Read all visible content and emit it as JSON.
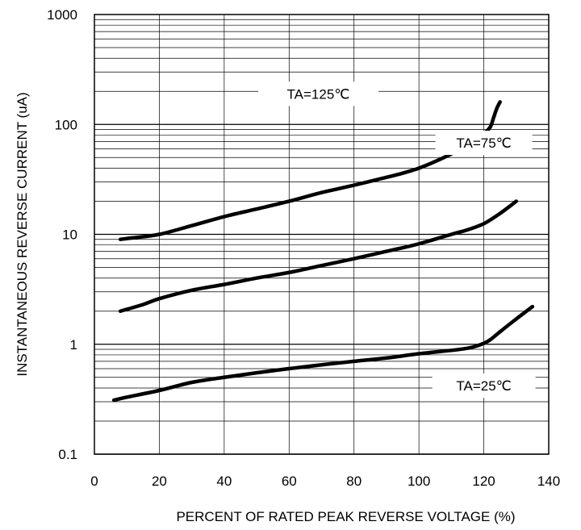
{
  "chart_data": {
    "type": "line",
    "xlabel": "PERCENT OF RATED PEAK REVERSE VOLTAGE (%)",
    "ylabel": "INSTANTANEOUS REVERSE CURRENT (uA)",
    "xlim": [
      0,
      140
    ],
    "ylim": [
      0.1,
      1000
    ],
    "yscale": "log",
    "grid": true,
    "x_ticks": [
      "0",
      "20",
      "40",
      "60",
      "80",
      "100",
      "120",
      "140"
    ],
    "y_ticks": [
      "0.1",
      "1",
      "10",
      "100",
      "1000"
    ],
    "series": [
      {
        "name": "TA=125℃",
        "x": [
          8,
          12,
          20,
          30,
          40,
          50,
          60,
          70,
          80,
          90,
          95,
          100,
          105,
          110,
          115,
          118,
          120,
          122,
          123,
          124,
          125
        ],
        "y": [
          9,
          9.3,
          10,
          12,
          14.5,
          17,
          20,
          24,
          28,
          33,
          36,
          40,
          46,
          54,
          65,
          74,
          82,
          95,
          115,
          140,
          160
        ]
      },
      {
        "name": "TA=75℃",
        "x": [
          8,
          15,
          20,
          30,
          40,
          50,
          60,
          70,
          80,
          90,
          100,
          110,
          115,
          120,
          125,
          130
        ],
        "y": [
          2,
          2.3,
          2.6,
          3.1,
          3.5,
          4,
          4.5,
          5.2,
          6,
          7,
          8.2,
          10,
          11,
          12.5,
          15.5,
          20
        ]
      },
      {
        "name": "TA=25℃",
        "x": [
          6,
          10,
          20,
          30,
          40,
          50,
          60,
          70,
          80,
          90,
          100,
          110,
          115,
          118,
          120,
          122,
          125,
          130,
          135
        ],
        "y": [
          0.31,
          0.33,
          0.38,
          0.45,
          0.5,
          0.55,
          0.6,
          0.65,
          0.7,
          0.75,
          0.82,
          0.88,
          0.92,
          0.97,
          1.02,
          1.1,
          1.3,
          1.7,
          2.2
        ]
      }
    ],
    "labels": [
      {
        "text": "TA=125℃",
        "series": 0
      },
      {
        "text": "TA=75℃",
        "series": 1
      },
      {
        "text": "TA=25℃",
        "series": 2
      }
    ],
    "colors": {
      "line": "#000000",
      "grid": "#000000",
      "background": "#ffffff"
    }
  }
}
